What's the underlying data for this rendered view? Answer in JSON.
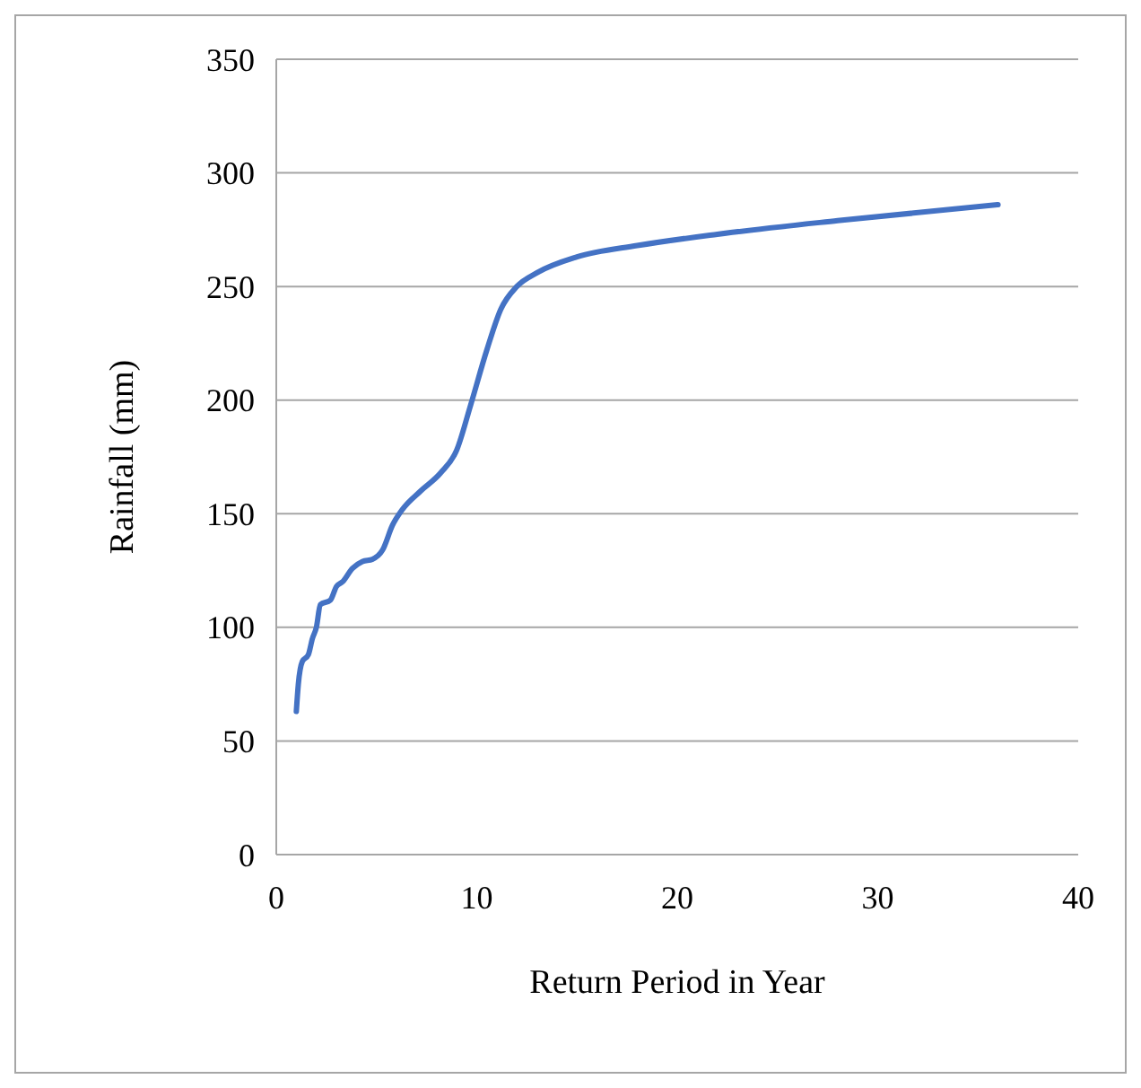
{
  "chart_data": {
    "type": "line",
    "xlabel": "Return Period in Year",
    "ylabel": "Rainfall (mm)",
    "xlim": [
      0,
      40
    ],
    "xticks": [
      0,
      10,
      20,
      30,
      40
    ],
    "ylim": [
      0,
      350
    ],
    "yticks": [
      0,
      50,
      100,
      150,
      200,
      250,
      300,
      350
    ],
    "grid": "y",
    "marker": "none",
    "line_style": "solid",
    "series": [
      {
        "color": "#4472c4",
        "x": [
          1.0,
          1.1,
          1.3,
          1.6,
          1.8,
          2.0,
          2.2,
          2.7,
          3.0,
          3.3,
          3.8,
          4.3,
          4.8,
          5.3,
          5.8,
          6.3,
          7.2,
          8.2,
          9.0,
          9.7,
          10.5,
          11.2,
          12.0,
          13,
          15,
          18,
          22,
          28,
          36
        ],
        "values": [
          63,
          75,
          85,
          88,
          95,
          100,
          110,
          112,
          118,
          120,
          126,
          129,
          130,
          134,
          145,
          152,
          160,
          168,
          178,
          198,
          222,
          240,
          250,
          256,
          263,
          268,
          273,
          279,
          286
        ]
      }
    ]
  }
}
